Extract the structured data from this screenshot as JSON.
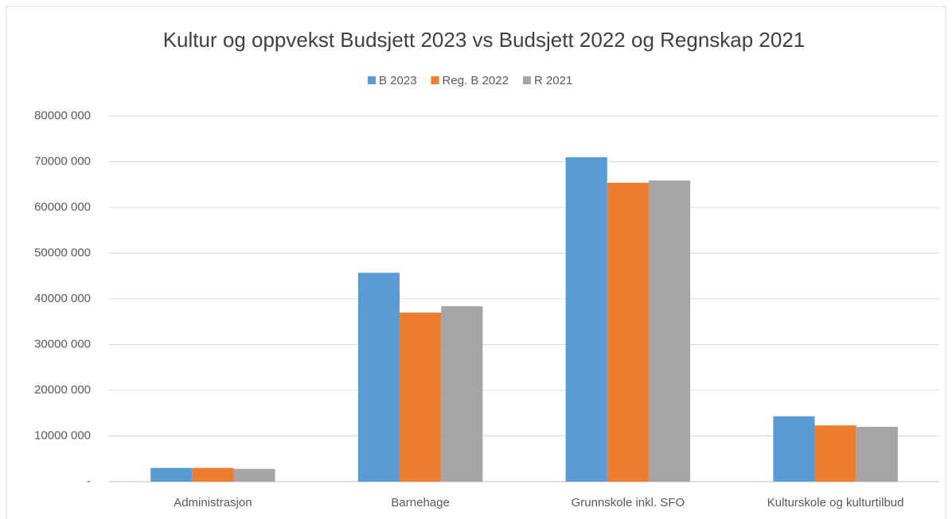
{
  "chart_data": {
    "type": "bar",
    "title": "Kultur og oppvekst Budsjett 2023 vs Budsjett 2022 og Regnskap 2021",
    "categories": [
      "Administrasjon",
      "Barnehage",
      "Grunnskole inkl. SFO",
      "Kulturskole og kulturtilbud"
    ],
    "series": [
      {
        "name": "B 2023",
        "color": "#5b9bd5",
        "values": [
          3000000,
          45700000,
          71000000,
          14300000
        ]
      },
      {
        "name": "Reg. B 2022",
        "color": "#ed7d31",
        "values": [
          3000000,
          37000000,
          65400000,
          12300000
        ]
      },
      {
        "name": "R 2021",
        "color": "#a5a5a5",
        "values": [
          2800000,
          38400000,
          65900000,
          12000000
        ]
      }
    ],
    "ylim": [
      0,
      80000000
    ],
    "yticks": [
      {
        "value": 0,
        "label": "-"
      },
      {
        "value": 10000000,
        "label": "10000 000"
      },
      {
        "value": 20000000,
        "label": "20000 000"
      },
      {
        "value": 30000000,
        "label": "30000 000"
      },
      {
        "value": 40000000,
        "label": "40000 000"
      },
      {
        "value": 50000000,
        "label": "50000 000"
      },
      {
        "value": 60000000,
        "label": "60000 000"
      },
      {
        "value": 70000000,
        "label": "70000 000"
      },
      {
        "value": 80000000,
        "label": "80000 000"
      }
    ],
    "grid": true,
    "legend": "top"
  }
}
